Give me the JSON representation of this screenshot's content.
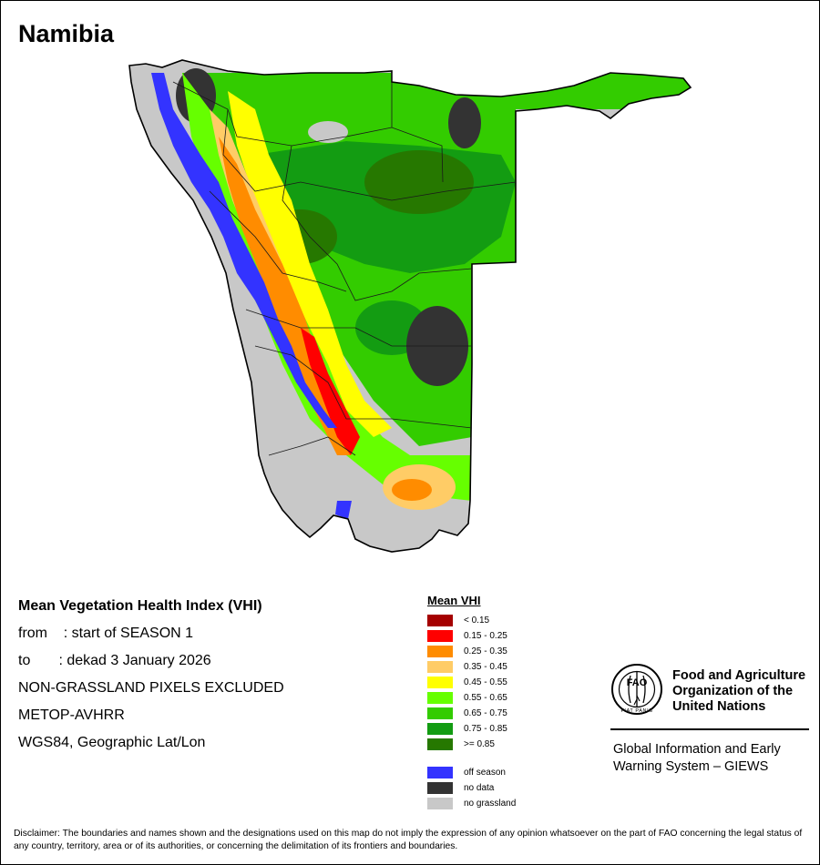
{
  "title": "Namibia",
  "info": {
    "heading": "Mean Vegetation Health Index (VHI)",
    "from_line": "from    : start of SEASON 1",
    "to_line": "to       : dekad 3 January 2026",
    "exclusion": "NON-GRASSLAND PIXELS EXCLUDED",
    "sensor": "METOP-AVHRR",
    "projection": "WGS84, Geographic Lat/Lon"
  },
  "legend": {
    "title": "Mean VHI",
    "classes": [
      {
        "label": "< 0.15",
        "color": "#a50000"
      },
      {
        "label": "0.15 - 0.25",
        "color": "#ff0000"
      },
      {
        "label": "0.25 - 0.35",
        "color": "#ff8c00"
      },
      {
        "label": "0.35 - 0.45",
        "color": "#ffcc66"
      },
      {
        "label": "0.45 - 0.55",
        "color": "#ffff00"
      },
      {
        "label": "0.55 - 0.65",
        "color": "#66ff00"
      },
      {
        "label": "0.65 - 0.75",
        "color": "#33cc00"
      },
      {
        "label": "0.75 - 0.85",
        "color": "#139c12"
      },
      {
        "label": ">= 0.85",
        "color": "#267800"
      }
    ],
    "special": [
      {
        "label": "off season",
        "color": "#3333ff"
      },
      {
        "label": "no data",
        "color": "#333333"
      },
      {
        "label": "no grassland",
        "color": "#c8c8c8"
      }
    ]
  },
  "organization": {
    "logo_letters": "FAO",
    "logo_motto": "FIAT PANIS",
    "name": "Food and Agriculture\nOrganization of the\nUnited Nations",
    "system": "Global Information and Early\nWarning System – GIEWS"
  },
  "disclaimer": "Disclaimer: The boundaries and names shown and the designations used on this map do not imply the expression of any opinion whatsoever on the part of FAO concerning the legal status of any country, territory, area or of its authorities, or concerning the delimitation of its frontiers and boundaries."
}
